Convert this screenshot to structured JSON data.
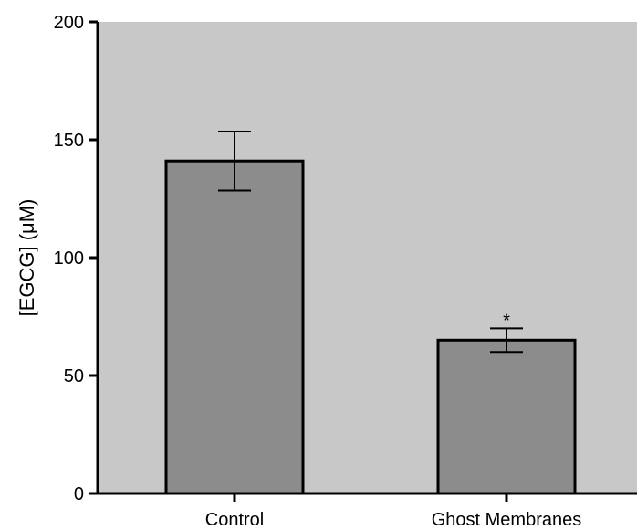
{
  "chart_data": {
    "type": "bar",
    "title": "",
    "xlabel": "",
    "ylabel": "[EGCG] (μM)",
    "ylim": [
      0,
      200
    ],
    "yticks": [
      0,
      50,
      100,
      150,
      200
    ],
    "categories": [
      "Control",
      "Ghost Membranes"
    ],
    "values": [
      141,
      65
    ],
    "error": [
      12.5,
      5
    ],
    "annotations": [
      {
        "category": "Ghost Membranes",
        "text": "*"
      }
    ],
    "grid": false,
    "legend": "none",
    "colors": {
      "plot_background": "#c8c8c8",
      "bar_fill": "#8c8c8c",
      "bar_stroke": "#000000",
      "axis": "#000000"
    }
  }
}
